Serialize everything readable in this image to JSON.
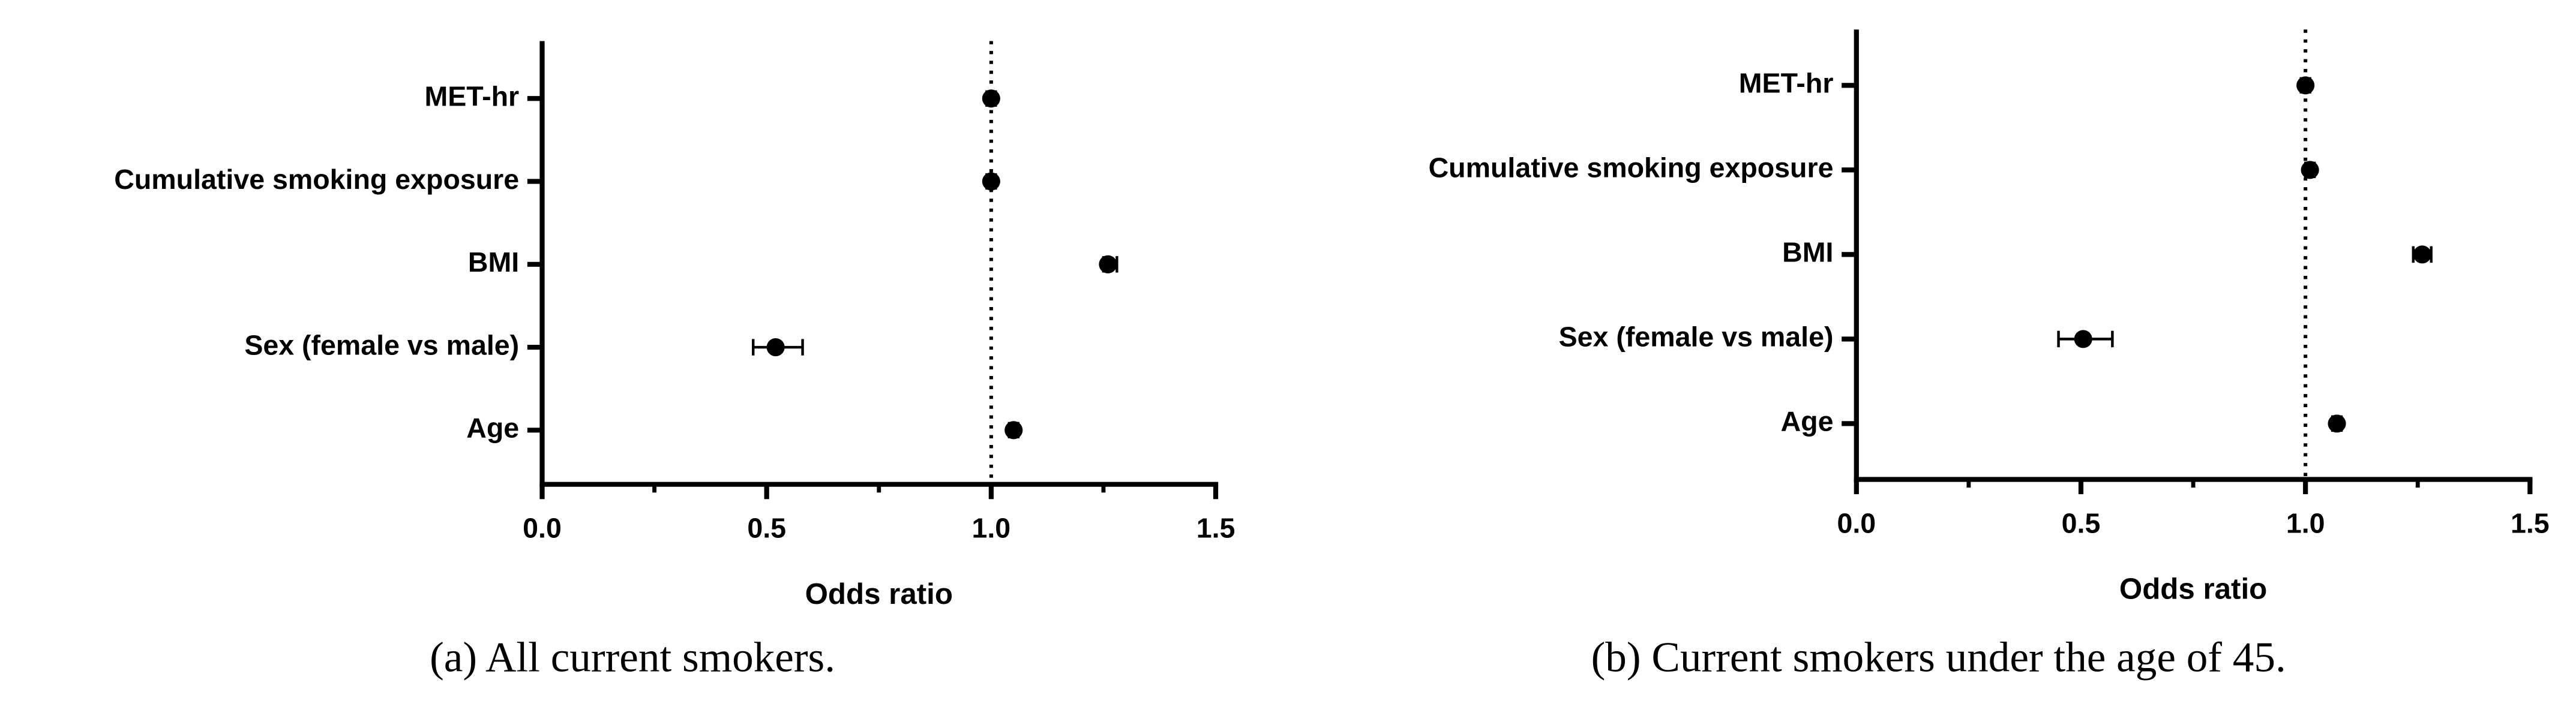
{
  "chart_data": [
    {
      "type": "forest",
      "x_label": "Odds ratio",
      "caption": "(a) All current smokers.",
      "categories": [
        "MET-hr",
        "Cumulative smoking exposure",
        "BMI",
        "Sex (female vs male)",
        "Age"
      ],
      "values": [
        1.0,
        1.0,
        1.26,
        0.52,
        1.05
      ],
      "lower": [
        0.99,
        0.99,
        1.25,
        0.47,
        1.04
      ],
      "upper": [
        1.01,
        1.01,
        1.28,
        0.58,
        1.06
      ],
      "color": "#000000",
      "reference_line": 1,
      "xlim": [
        0,
        1.5
      ],
      "xticks": [
        {
          "value": 0,
          "label": "0.0"
        },
        0.5,
        {
          "value": 1,
          "label": "1.0"
        },
        1.5
      ],
      "minor_xticks": [
        0.25,
        0.75,
        1.25
      ]
    },
    {
      "type": "forest",
      "x_label": "Odds ratio",
      "caption": "(b) Current smokers under the age of 45.",
      "categories": [
        "MET-hr",
        "Cumulative smoking exposure",
        "BMI",
        "Sex (female vs male)",
        "Age"
      ],
      "values": [
        1.0,
        1.01,
        1.26,
        0.505,
        1.07
      ],
      "lower": [
        0.99,
        1.0,
        1.24,
        0.45,
        1.06
      ],
      "upper": [
        1.01,
        1.02,
        1.28,
        0.57,
        1.08
      ],
      "color": "#000000",
      "reference_line": 1,
      "xlim": [
        0,
        1.5
      ],
      "xticks": [
        {
          "value": 0,
          "label": "0.0"
        },
        0.5,
        {
          "value": 1,
          "label": "1.0"
        },
        1.5
      ],
      "minor_xticks": [
        0.25,
        0.75,
        1.25
      ]
    }
  ]
}
